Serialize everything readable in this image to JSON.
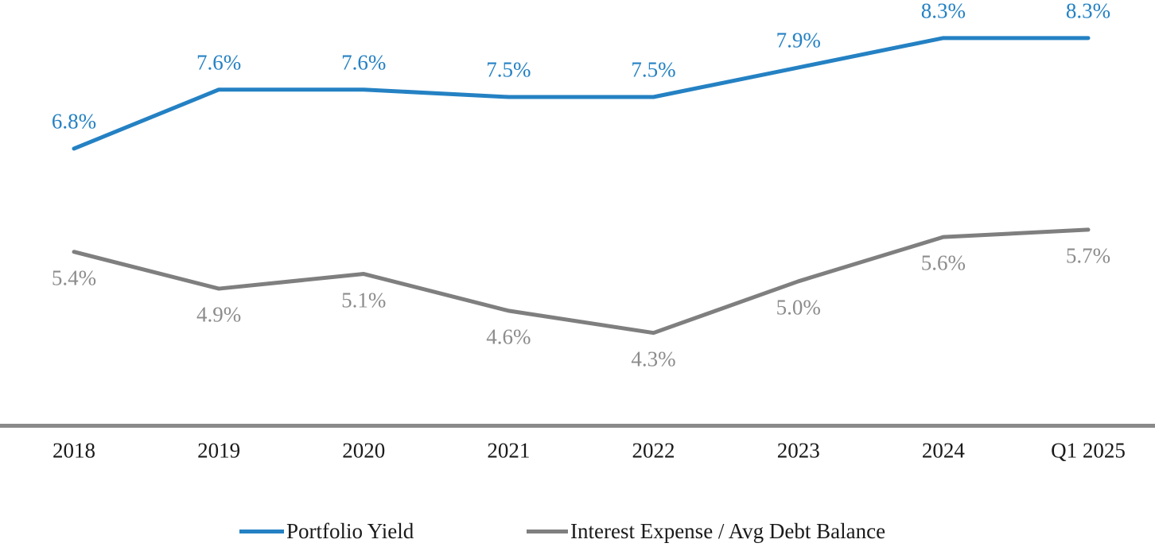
{
  "chart_data": {
    "type": "line",
    "title": "",
    "xlabel": "",
    "ylabel": "",
    "grid": false,
    "legend_position": "bottom",
    "value_format": "percent",
    "axis_line_color": "#8a8a8a",
    "x_tick_color": "#1a1a1a",
    "categories": [
      "2018",
      "2019",
      "2020",
      "2021",
      "2022",
      "2023",
      "2024",
      "Q1 2025"
    ],
    "series": [
      {
        "name": "Portfolio Yield",
        "values": [
          6.8,
          7.6,
          7.6,
          7.5,
          7.5,
          7.9,
          8.3,
          8.3
        ],
        "labels": [
          "6.8%",
          "7.6%",
          "7.6%",
          "7.5%",
          "7.5%",
          "7.9%",
          "8.3%",
          "8.3%"
        ],
        "color": "#2481c3",
        "label_color": "#2481c3"
      },
      {
        "name": "Interest Expense / Avg Debt Balance",
        "values": [
          5.4,
          4.9,
          5.1,
          4.6,
          4.3,
          5.0,
          5.6,
          5.7
        ],
        "labels": [
          "5.4%",
          "4.9%",
          "5.1%",
          "4.6%",
          "4.3%",
          "5.0%",
          "5.6%",
          "5.7%"
        ],
        "color": "#7f7f7f",
        "label_color": "#8c8c8c"
      }
    ]
  }
}
